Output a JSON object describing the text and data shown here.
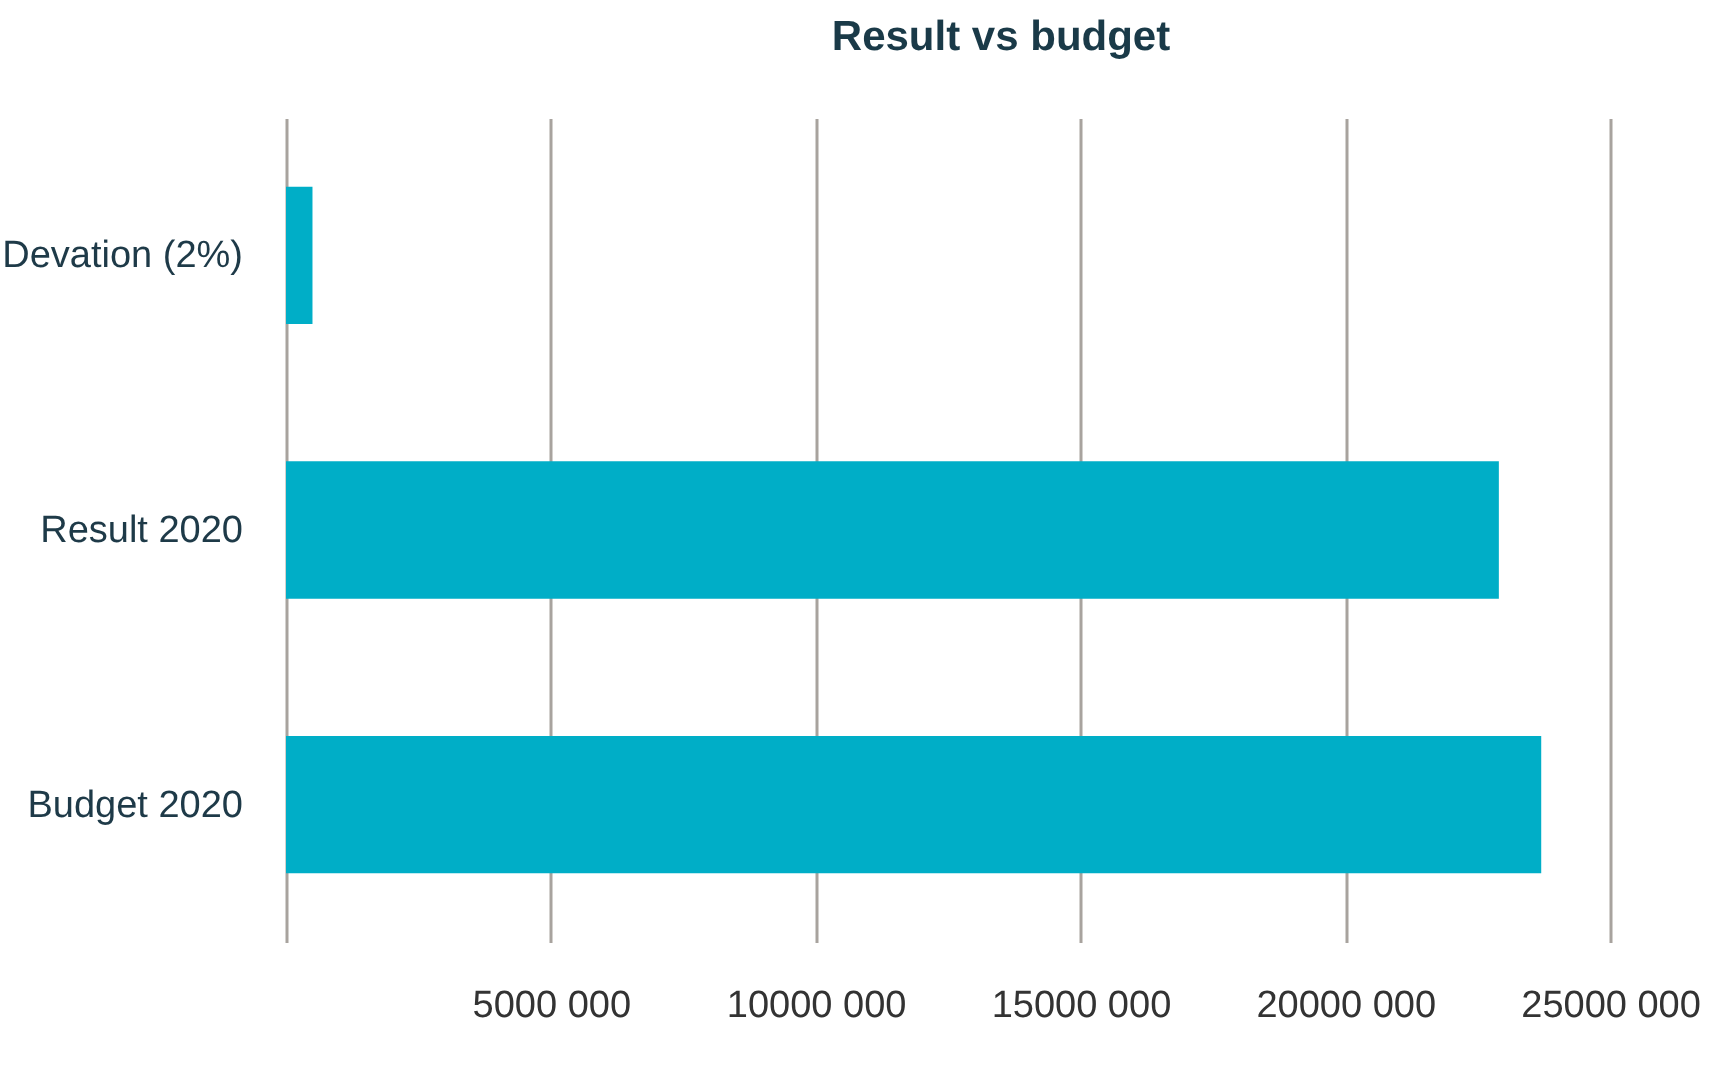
{
  "chart_data": {
    "type": "bar",
    "orientation": "horizontal",
    "title": "Result vs budget",
    "categories": [
      "Devation (2%)",
      "Result 2020",
      "Budget 2020"
    ],
    "values": [
      500000,
      22900000,
      23700000
    ],
    "color": "#00aec7",
    "xlim": [
      0,
      27000000
    ],
    "xticks": [
      {
        "value": 0,
        "label": null
      },
      {
        "value": 5000000,
        "label": "5000 000"
      },
      {
        "value": 10000000,
        "label": "10000 000"
      },
      {
        "value": 15000000,
        "label": "15000 000"
      },
      {
        "value": 20000000,
        "label": "20000 000"
      },
      {
        "value": 25000000,
        "label": "25000 000"
      }
    ],
    "grid": "x"
  }
}
